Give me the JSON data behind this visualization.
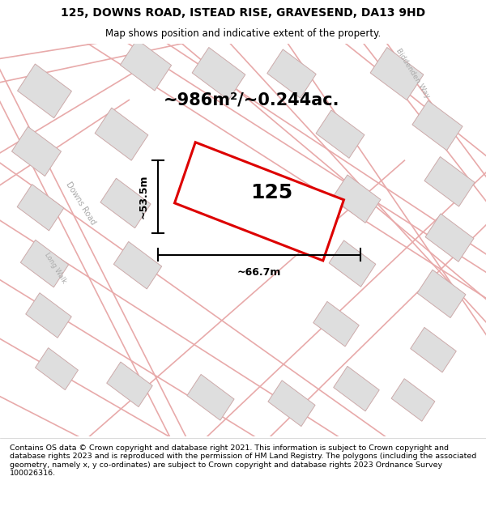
{
  "title": "125, DOWNS ROAD, ISTEAD RISE, GRAVESEND, DA13 9HD",
  "subtitle": "Map shows position and indicative extent of the property.",
  "footer": "Contains OS data © Crown copyright and database right 2021. This information is subject to Crown copyright and database rights 2023 and is reproduced with the permission of HM Land Registry. The polygons (including the associated geometry, namely x, y co-ordinates) are subject to Crown copyright and database rights 2023 Ordnance Survey 100026316.",
  "area_label": "~986m²/~0.244ac.",
  "property_number": "125",
  "width_label": "~66.7m",
  "height_label": "~53.5m",
  "map_bg": "#f7f2f2",
  "road_color": "#e8aaaa",
  "building_fill": "#dedede",
  "building_edge": "#ccaaaa",
  "prop_edge": "#dd0000",
  "prop_fill": "#ffffff",
  "street_color": "#aaaaaa",
  "title_fontsize": 10,
  "subtitle_fontsize": 8.5,
  "area_fontsize": 15,
  "prop_fontsize": 18,
  "dim_fontsize": 9,
  "footer_fontsize": 6.8
}
